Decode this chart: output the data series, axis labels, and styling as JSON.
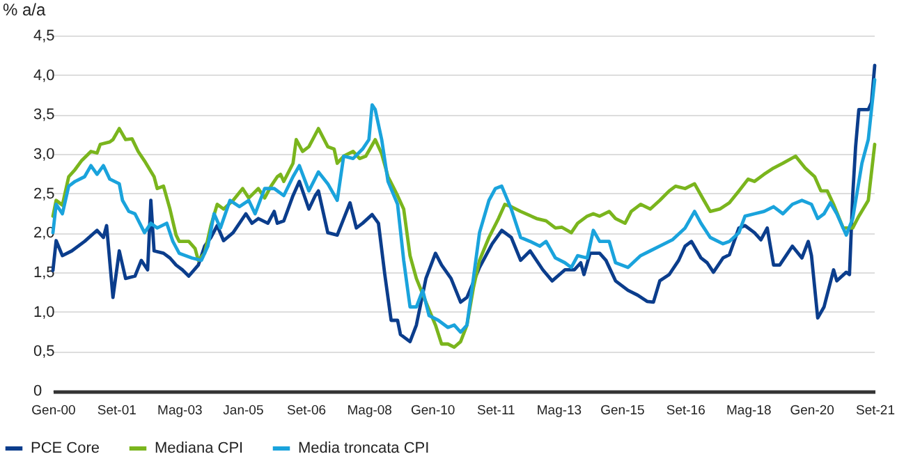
{
  "chart_data": {
    "type": "line",
    "ylabel": "% a/a",
    "grid": "y",
    "legend": "bottom",
    "xlim": [
      "2000-01",
      "2021-09"
    ],
    "xticks": [
      {
        "value": "2000-01",
        "label": "Gen-00"
      },
      {
        "value": "2001-09",
        "label": "Set-01"
      },
      {
        "value": "2003-05",
        "label": "Mag-03"
      },
      {
        "value": "2005-01",
        "label": "Jan-05"
      },
      {
        "value": "2006-09",
        "label": "Set-06"
      },
      {
        "value": "2008-05",
        "label": "Mag-08"
      },
      {
        "value": "2010-01",
        "label": "Gen-10"
      },
      {
        "value": "2011-09",
        "label": "Set-11"
      },
      {
        "value": "2013-05",
        "label": "Mag-13"
      },
      {
        "value": "2015-01",
        "label": "Gen-15"
      },
      {
        "value": "2016-09",
        "label": "Set-16"
      },
      {
        "value": "2018-05",
        "label": "Mag-18"
      },
      {
        "value": "2020-01",
        "label": "Gen-20"
      },
      {
        "value": "2021-09",
        "label": "Set-21"
      }
    ],
    "ylim": [
      0,
      4.5
    ],
    "yticks": [
      0,
      {
        "value": 0.5,
        "label": "0,5"
      },
      {
        "value": 1,
        "label": "1,0"
      },
      {
        "value": 1.5,
        "label": "1,5"
      },
      {
        "value": 2,
        "label": "2,0"
      },
      {
        "value": 2.5,
        "label": "2,5"
      },
      {
        "value": 3,
        "label": "3,0"
      },
      {
        "value": 3.5,
        "label": "3,5"
      },
      {
        "value": 4,
        "label": "4,0"
      },
      {
        "value": 4.5,
        "label": "4,5"
      }
    ],
    "series": [
      {
        "name": "PCE Core",
        "color": "#0b3d8c",
        "x": [
          "2000-01",
          "2000-02",
          "2000-04",
          "2000-07",
          "2000-11",
          "2001-03",
          "2001-05",
          "2001-06",
          "2001-08",
          "2001-10",
          "2001-12",
          "2002-03",
          "2002-05",
          "2002-07",
          "2002-08",
          "2002-09",
          "2002-12",
          "2003-02",
          "2003-04",
          "2003-06",
          "2003-08",
          "2003-11",
          "2004-01",
          "2004-03",
          "2004-05",
          "2004-07",
          "2004-10",
          "2005-02",
          "2005-04",
          "2005-06",
          "2005-09",
          "2005-11",
          "2005-12",
          "2006-02",
          "2006-05",
          "2006-07",
          "2006-10",
          "2006-12",
          "2007-01",
          "2007-04",
          "2007-07",
          "2007-11",
          "2008-01",
          "2008-03",
          "2008-06",
          "2008-08",
          "2008-10",
          "2008-12",
          "2009-02",
          "2009-03",
          "2009-06",
          "2009-08",
          "2009-11",
          "2010-02",
          "2010-04",
          "2010-07",
          "2010-10",
          "2010-12",
          "2011-04",
          "2011-08",
          "2011-11",
          "2012-02",
          "2012-05",
          "2012-08",
          "2012-12",
          "2013-03",
          "2013-07",
          "2013-10",
          "2013-12",
          "2014-01",
          "2014-03",
          "2014-06",
          "2014-08",
          "2014-11",
          "2015-03",
          "2015-06",
          "2015-09",
          "2015-11",
          "2016-01",
          "2016-04",
          "2016-07",
          "2016-09",
          "2016-11",
          "2017-02",
          "2017-04",
          "2017-06",
          "2017-09",
          "2017-11",
          "2018-02",
          "2018-04",
          "2018-07",
          "2018-09",
          "2018-11",
          "2019-01",
          "2019-03",
          "2019-05",
          "2019-07",
          "2019-10",
          "2019-12",
          "2020-01",
          "2020-03",
          "2020-05",
          "2020-08",
          "2020-09",
          "2020-12",
          "2021-01",
          "2021-02",
          "2021-03",
          "2021-04",
          "2021-07",
          "2021-08",
          "2021-09"
        ],
        "values": [
          1.53,
          1.91,
          1.72,
          1.78,
          1.9,
          2.04,
          1.95,
          2.1,
          1.19,
          1.78,
          1.43,
          1.46,
          1.66,
          1.54,
          2.42,
          1.78,
          1.75,
          1.69,
          1.6,
          1.54,
          1.46,
          1.6,
          1.84,
          1.95,
          2.1,
          1.91,
          2.01,
          2.25,
          2.13,
          2.19,
          2.13,
          2.28,
          2.13,
          2.16,
          2.48,
          2.66,
          2.31,
          2.48,
          2.54,
          2.01,
          1.98,
          2.39,
          2.07,
          2.13,
          2.24,
          2.13,
          1.48,
          0.9,
          0.9,
          0.72,
          0.63,
          0.84,
          1.43,
          1.75,
          1.6,
          1.43,
          1.13,
          1.19,
          1.57,
          1.87,
          2.04,
          1.95,
          1.66,
          1.78,
          1.54,
          1.4,
          1.54,
          1.54,
          1.63,
          1.48,
          1.75,
          1.75,
          1.66,
          1.4,
          1.28,
          1.22,
          1.14,
          1.13,
          1.4,
          1.48,
          1.66,
          1.84,
          1.9,
          1.69,
          1.63,
          1.51,
          1.69,
          1.73,
          2.07,
          2.1,
          2.01,
          1.92,
          2.07,
          1.6,
          1.6,
          1.72,
          1.84,
          1.69,
          1.9,
          1.72,
          0.93,
          1.07,
          1.54,
          1.4,
          1.51,
          1.48,
          2.48,
          3.1,
          3.57,
          3.57,
          3.66,
          4.13
        ]
      },
      {
        "name": "Mediana CPI",
        "color": "#7ab51d",
        "x": [
          "2000-01",
          "2000-02",
          "2000-04",
          "2000-06",
          "2000-08",
          "2000-10",
          "2001-01",
          "2001-03",
          "2001-04",
          "2001-07",
          "2001-08",
          "2001-10",
          "2001-12",
          "2002-02",
          "2002-04",
          "2002-06",
          "2002-09",
          "2002-10",
          "2002-12",
          "2003-02",
          "2003-04",
          "2003-05",
          "2003-08",
          "2003-10",
          "2003-11",
          "2004-01",
          "2004-03",
          "2004-05",
          "2004-07",
          "2004-10",
          "2005-01",
          "2005-03",
          "2005-06",
          "2005-08",
          "2005-10",
          "2005-12",
          "2006-01",
          "2006-02",
          "2006-05",
          "2006-06",
          "2006-08",
          "2006-10",
          "2007-01",
          "2007-04",
          "2007-06",
          "2007-07",
          "2007-09",
          "2007-12",
          "2008-02",
          "2008-04",
          "2008-07",
          "2008-09",
          "2008-11",
          "2009-02",
          "2009-04",
          "2009-06",
          "2009-08",
          "2009-11",
          "2010-02",
          "2010-04",
          "2010-06",
          "2010-08",
          "2010-10",
          "2010-12",
          "2011-02",
          "2011-04",
          "2011-07",
          "2011-10",
          "2011-12",
          "2012-02",
          "2012-05",
          "2012-10",
          "2013-01",
          "2013-04",
          "2013-06",
          "2013-09",
          "2013-11",
          "2014-02",
          "2014-04",
          "2014-06",
          "2014-09",
          "2014-11",
          "2015-02",
          "2015-04",
          "2015-07",
          "2015-10",
          "2016-01",
          "2016-04",
          "2016-06",
          "2016-09",
          "2016-12",
          "2017-03",
          "2017-05",
          "2017-08",
          "2017-11",
          "2018-02",
          "2018-05",
          "2018-07",
          "2018-10",
          "2019-01",
          "2019-04",
          "2019-08",
          "2019-11",
          "2020-02",
          "2020-04",
          "2020-06",
          "2020-08",
          "2020-11",
          "2021-02",
          "2021-04",
          "2021-07",
          "2021-09"
        ],
        "values": [
          2.22,
          2.42,
          2.36,
          2.72,
          2.81,
          2.92,
          3.04,
          3.02,
          3.13,
          3.16,
          3.19,
          3.33,
          3.19,
          3.2,
          3.04,
          2.92,
          2.72,
          2.57,
          2.6,
          2.31,
          1.98,
          1.9,
          1.9,
          1.81,
          1.66,
          1.75,
          2.1,
          2.37,
          2.31,
          2.42,
          2.57,
          2.45,
          2.57,
          2.45,
          2.6,
          2.72,
          2.75,
          2.66,
          2.89,
          3.19,
          3.04,
          3.1,
          3.33,
          3.1,
          3.07,
          2.89,
          2.98,
          3.04,
          2.95,
          2.98,
          3.19,
          3.01,
          2.72,
          2.48,
          2.31,
          1.72,
          1.43,
          1.13,
          0.84,
          0.6,
          0.6,
          0.56,
          0.63,
          0.84,
          1.31,
          1.66,
          1.95,
          2.19,
          2.37,
          2.34,
          2.28,
          2.19,
          2.16,
          2.07,
          2.08,
          2.01,
          2.13,
          2.22,
          2.25,
          2.22,
          2.28,
          2.19,
          2.13,
          2.28,
          2.37,
          2.31,
          2.42,
          2.54,
          2.6,
          2.57,
          2.63,
          2.42,
          2.28,
          2.31,
          2.39,
          2.54,
          2.69,
          2.66,
          2.75,
          2.83,
          2.89,
          2.98,
          2.83,
          2.72,
          2.54,
          2.54,
          2.37,
          2.07,
          2.07,
          2.22,
          2.42,
          3.13
        ]
      },
      {
        "name": "Media troncata CPI",
        "color": "#1aa3dc",
        "x": [
          "2000-01",
          "2000-02",
          "2000-04",
          "2000-06",
          "2000-08",
          "2000-11",
          "2001-01",
          "2001-03",
          "2001-05",
          "2001-07",
          "2001-10",
          "2001-11",
          "2002-01",
          "2002-03",
          "2002-06",
          "2002-08",
          "2002-10",
          "2003-01",
          "2003-03",
          "2003-05",
          "2003-09",
          "2003-12",
          "2004-02",
          "2004-04",
          "2004-06",
          "2004-09",
          "2004-12",
          "2005-03",
          "2005-05",
          "2005-08",
          "2005-11",
          "2006-02",
          "2006-05",
          "2006-07",
          "2006-10",
          "2007-01",
          "2007-04",
          "2007-07",
          "2007-09",
          "2007-12",
          "2008-03",
          "2008-05",
          "2008-06",
          "2008-07",
          "2008-09",
          "2008-11",
          "2009-02",
          "2009-04",
          "2009-06",
          "2009-08",
          "2009-10",
          "2009-12",
          "2010-03",
          "2010-06",
          "2010-08",
          "2010-10",
          "2010-12",
          "2011-02",
          "2011-04",
          "2011-07",
          "2011-09",
          "2011-11",
          "2012-02",
          "2012-05",
          "2012-08",
          "2012-11",
          "2013-01",
          "2013-04",
          "2013-07",
          "2013-09",
          "2013-11",
          "2014-02",
          "2014-04",
          "2014-06",
          "2014-09",
          "2014-11",
          "2015-03",
          "2015-07",
          "2015-10",
          "2016-01",
          "2016-05",
          "2016-09",
          "2016-12",
          "2017-02",
          "2017-05",
          "2017-09",
          "2017-11",
          "2018-02",
          "2018-04",
          "2018-07",
          "2018-10",
          "2019-01",
          "2019-04",
          "2019-07",
          "2019-10",
          "2020-01",
          "2020-03",
          "2020-05",
          "2020-07",
          "2020-09",
          "2020-12",
          "2021-02",
          "2021-05",
          "2021-07",
          "2021-09"
        ],
        "values": [
          2.01,
          2.37,
          2.25,
          2.6,
          2.66,
          2.72,
          2.86,
          2.75,
          2.86,
          2.69,
          2.63,
          2.42,
          2.28,
          2.25,
          2.01,
          2.13,
          2.07,
          2.13,
          1.9,
          1.75,
          1.69,
          1.66,
          1.84,
          2.25,
          2.07,
          2.42,
          2.34,
          2.42,
          2.25,
          2.57,
          2.57,
          2.48,
          2.72,
          2.86,
          2.54,
          2.78,
          2.63,
          2.42,
          2.98,
          2.95,
          3.07,
          3.19,
          3.63,
          3.57,
          3.19,
          2.66,
          2.37,
          1.66,
          1.07,
          1.07,
          1.28,
          0.96,
          0.9,
          0.81,
          0.84,
          0.75,
          0.84,
          1.43,
          2.01,
          2.42,
          2.57,
          2.6,
          2.31,
          1.95,
          1.9,
          1.84,
          1.9,
          1.69,
          1.63,
          1.57,
          1.72,
          1.69,
          2.04,
          1.9,
          1.9,
          1.63,
          1.57,
          1.72,
          1.78,
          1.84,
          1.92,
          2.07,
          2.28,
          2.13,
          1.95,
          1.87,
          1.9,
          2.01,
          2.22,
          2.25,
          2.28,
          2.34,
          2.25,
          2.37,
          2.42,
          2.37,
          2.19,
          2.25,
          2.39,
          2.25,
          1.98,
          2.19,
          2.89,
          3.19,
          3.95
        ]
      }
    ]
  }
}
